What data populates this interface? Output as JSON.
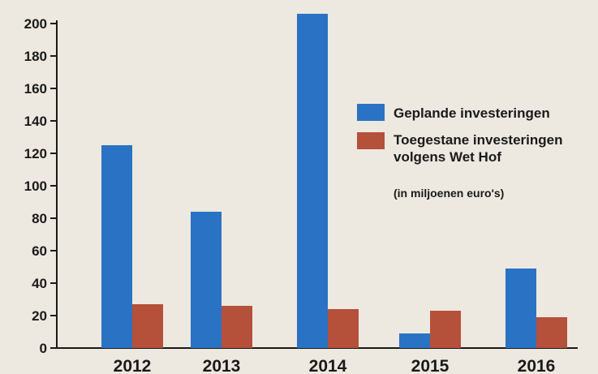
{
  "chart_data": {
    "type": "bar",
    "title": "",
    "xlabel": "",
    "ylabel": "",
    "ylim": [
      0,
      200
    ],
    "yticks": [
      0,
      20,
      40,
      60,
      80,
      100,
      120,
      140,
      160,
      180,
      200
    ],
    "grid": false,
    "legend_position": "right",
    "categories": [
      "2012",
      "2013",
      "2014",
      "2015",
      "2016"
    ],
    "series": [
      {
        "name": "Geplande investeringen",
        "color": "#2a72c4",
        "values": [
          125,
          84,
          206,
          9,
          49
        ]
      },
      {
        "name": "Toegestane investeringen volgens Wet Hof",
        "color": "#b5503a",
        "values": [
          27,
          26,
          24,
          23,
          19
        ]
      }
    ],
    "annotation": "(in miljoenen euro's)"
  }
}
